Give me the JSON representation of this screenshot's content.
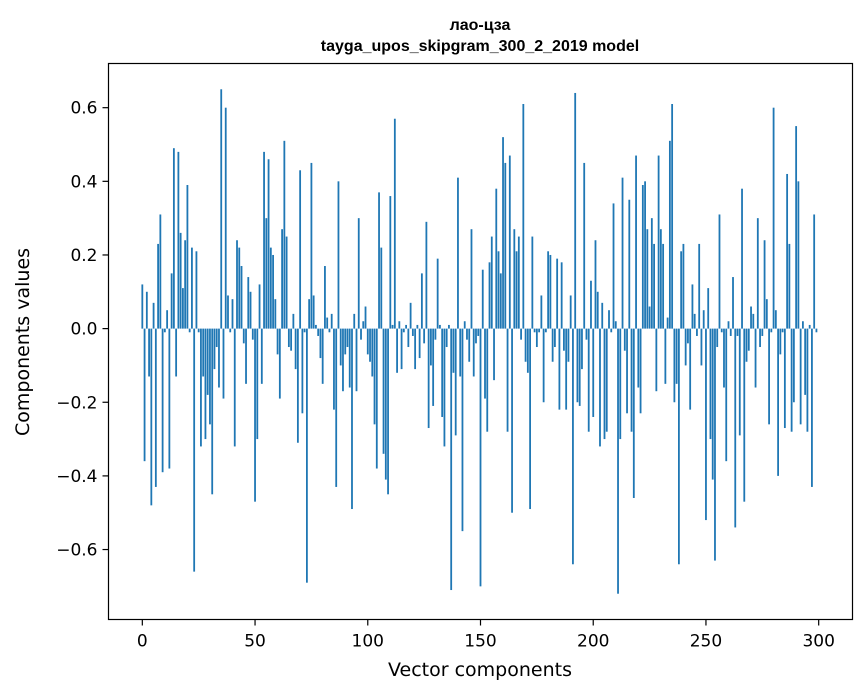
{
  "chart_data": {
    "type": "bar",
    "title": "лао-цза",
    "subtitle": "tayga_upos_skipgram_300_2_2019 model",
    "xlabel": "Vector components",
    "ylabel": "Components values",
    "xlim": [
      -15,
      315
    ],
    "ylim": [
      -0.79,
      0.72
    ],
    "xticks": [
      0,
      50,
      100,
      150,
      200,
      250,
      300
    ],
    "xtick_labels": [
      "0",
      "50",
      "100",
      "150",
      "200",
      "250",
      "300"
    ],
    "yticks": [
      -0.6,
      -0.4,
      -0.2,
      0.0,
      0.2,
      0.4,
      0.6
    ],
    "ytick_labels": [
      "−0.6",
      "−0.4",
      "−0.2",
      "0.0",
      "0.2",
      "0.4",
      "0.6"
    ],
    "bar_color": "#1f77b4",
    "grid": false,
    "legend": "none",
    "values": [
      0.12,
      -0.36,
      0.1,
      -0.13,
      -0.48,
      0.07,
      -0.43,
      0.23,
      0.31,
      -0.39,
      -0.01,
      0.05,
      -0.38,
      0.15,
      0.49,
      -0.13,
      0.48,
      0.26,
      0.11,
      0.24,
      0.39,
      -0.01,
      0.22,
      -0.66,
      0.21,
      -0.01,
      -0.32,
      -0.13,
      -0.3,
      -0.18,
      -0.26,
      -0.45,
      -0.11,
      -0.05,
      -0.16,
      0.65,
      -0.19,
      0.6,
      0.09,
      -0.01,
      0.08,
      -0.32,
      0.24,
      0.22,
      0.17,
      -0.04,
      -0.15,
      0.14,
      0.1,
      -0.03,
      -0.47,
      -0.3,
      0.12,
      -0.15,
      0.48,
      0.3,
      0.46,
      0.22,
      0.2,
      0.08,
      -0.07,
      -0.19,
      0.27,
      0.51,
      0.25,
      -0.05,
      -0.06,
      0.04,
      -0.11,
      -0.31,
      0.43,
      -0.23,
      -0.01,
      -0.69,
      0.08,
      0.45,
      0.09,
      0.01,
      -0.02,
      -0.08,
      -0.15,
      0.17,
      0.03,
      -0.01,
      0.04,
      -0.22,
      -0.43,
      0.4,
      -0.1,
      -0.17,
      -0.07,
      -0.05,
      -0.16,
      -0.49,
      0.04,
      -0.17,
      0.3,
      -0.03,
      0.02,
      0.06,
      -0.07,
      -0.09,
      -0.13,
      -0.26,
      -0.38,
      0.37,
      0.22,
      -0.34,
      -0.41,
      -0.45,
      0.36,
      0.01,
      0.57,
      -0.12,
      0.02,
      -0.11,
      -0.01,
      0.01,
      -0.05,
      0.07,
      -0.02,
      -0.11,
      0.01,
      -0.08,
      0.15,
      -0.04,
      0.29,
      -0.27,
      -0.1,
      -0.21,
      -0.03,
      0.19,
      0.01,
      -0.24,
      -0.32,
      -0.05,
      0.01,
      -0.71,
      -0.12,
      -0.29,
      0.41,
      -0.13,
      -0.55,
      0.02,
      -0.03,
      -0.09,
      0.27,
      -0.13,
      -0.04,
      -0.02,
      -0.7,
      0.16,
      -0.19,
      -0.28,
      0.18,
      0.25,
      -0.14,
      0.38,
      0.21,
      0.15,
      0.52,
      0.45,
      -0.28,
      0.47,
      -0.5,
      0.27,
      0.21,
      0.25,
      -0.03,
      0.61,
      -0.09,
      -0.12,
      -0.49,
      0.25,
      -0.01,
      -0.05,
      -0.01,
      0.09,
      -0.2,
      -0.01,
      0.21,
      0.2,
      -0.09,
      -0.05,
      0.19,
      -0.22,
      0.18,
      -0.06,
      -0.22,
      -0.09,
      0.09,
      -0.64,
      0.64,
      -0.2,
      -0.21,
      -0.11,
      0.45,
      -0.03,
      -0.28,
      0.13,
      -0.24,
      0.24,
      0.1,
      -0.32,
      0.07,
      -0.3,
      -0.28,
      0.05,
      -0.01,
      0.34,
      0.02,
      -0.72,
      -0.3,
      0.41,
      -0.06,
      -0.23,
      0.35,
      -0.28,
      -0.46,
      0.47,
      -0.16,
      -0.23,
      0.39,
      0.4,
      0.27,
      0.06,
      0.3,
      0.23,
      -0.17,
      0.47,
      0.27,
      0.23,
      -0.15,
      0.03,
      0.51,
      0.61,
      -0.2,
      -0.15,
      -0.64,
      0.21,
      0.23,
      -0.1,
      -0.04,
      -0.22,
      0.12,
      0.04,
      -0.02,
      0.23,
      -0.1,
      0.05,
      -0.52,
      0.11,
      -0.3,
      -0.41,
      -0.63,
      -0.05,
      0.31,
      -0.01,
      -0.16,
      -0.36,
      0.02,
      -0.02,
      0.14,
      -0.54,
      -0.02,
      -0.29,
      0.38,
      -0.47,
      -0.09,
      -0.06,
      0.06,
      0.04,
      -0.16,
      0.3,
      -0.05,
      -0.02,
      0.24,
      0.08,
      -0.26,
      -0.01,
      0.6,
      0.05,
      -0.4,
      -0.07,
      -0.01,
      -0.27,
      0.42,
      0.23,
      -0.28,
      -0.2,
      0.55,
      0.4,
      -0.26,
      0.02,
      -0.18,
      -0.28,
      0.01,
      -0.43,
      0.31,
      -0.01
    ]
  }
}
